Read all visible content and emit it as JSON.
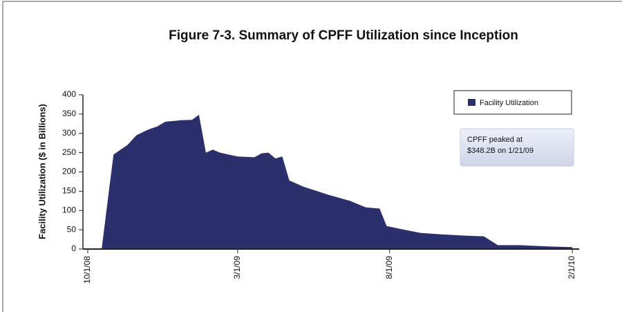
{
  "chart_data": {
    "type": "area",
    "title": "Figure 7-3. Summary of CPFF Utilization since Inception",
    "y_label": "Facility Utilization ($ in Billions)",
    "annotation": [
      "CPFF peaked at",
      "$348.2B on 1/21/09"
    ],
    "x": [
      "10/1/08",
      "10/15/08",
      "10/22/08",
      "10/27/08",
      "11/10/08",
      "11/19/08",
      "12/1/08",
      "12/10/08",
      "12/18/08",
      "1/3/09",
      "1/14/09",
      "1/21/09",
      "1/28/09",
      "2/4/09",
      "2/11/09",
      "3/1/09",
      "3/18/09",
      "3/25/09",
      "4/1/09",
      "4/8/09",
      "4/15/09",
      "4/22/09",
      "5/6/09",
      "6/1/09",
      "6/22/09",
      "7/8/09",
      "7/22/09",
      "7/29/09",
      "8/12/09",
      "9/1/09",
      "9/22/09",
      "10/14/09",
      "11/4/09",
      "11/18/09",
      "12/9/09",
      "1/6/10",
      "2/1/10"
    ],
    "series": [
      {
        "name": "Facility Utilization",
        "color": "#2b2f6b",
        "values": [
          0,
          0,
          145,
          245,
          270,
          295,
          310,
          318,
          330,
          334,
          335,
          348.2,
          250,
          258,
          250,
          240,
          238,
          248,
          250,
          235,
          240,
          178,
          162,
          140,
          125,
          108,
          105,
          60,
          52,
          42,
          38,
          35,
          33,
          10,
          10,
          7,
          5
        ]
      }
    ],
    "xlim": [
      "10/1/08",
      "2/1/10"
    ],
    "xticks": [
      "10/1/08",
      "3/1/09",
      "8/1/09",
      "2/1/10"
    ],
    "ylim": [
      0,
      400
    ],
    "yticks": [
      0,
      50,
      100,
      150,
      200,
      250,
      300,
      350,
      400
    ],
    "legend": "upper right"
  }
}
